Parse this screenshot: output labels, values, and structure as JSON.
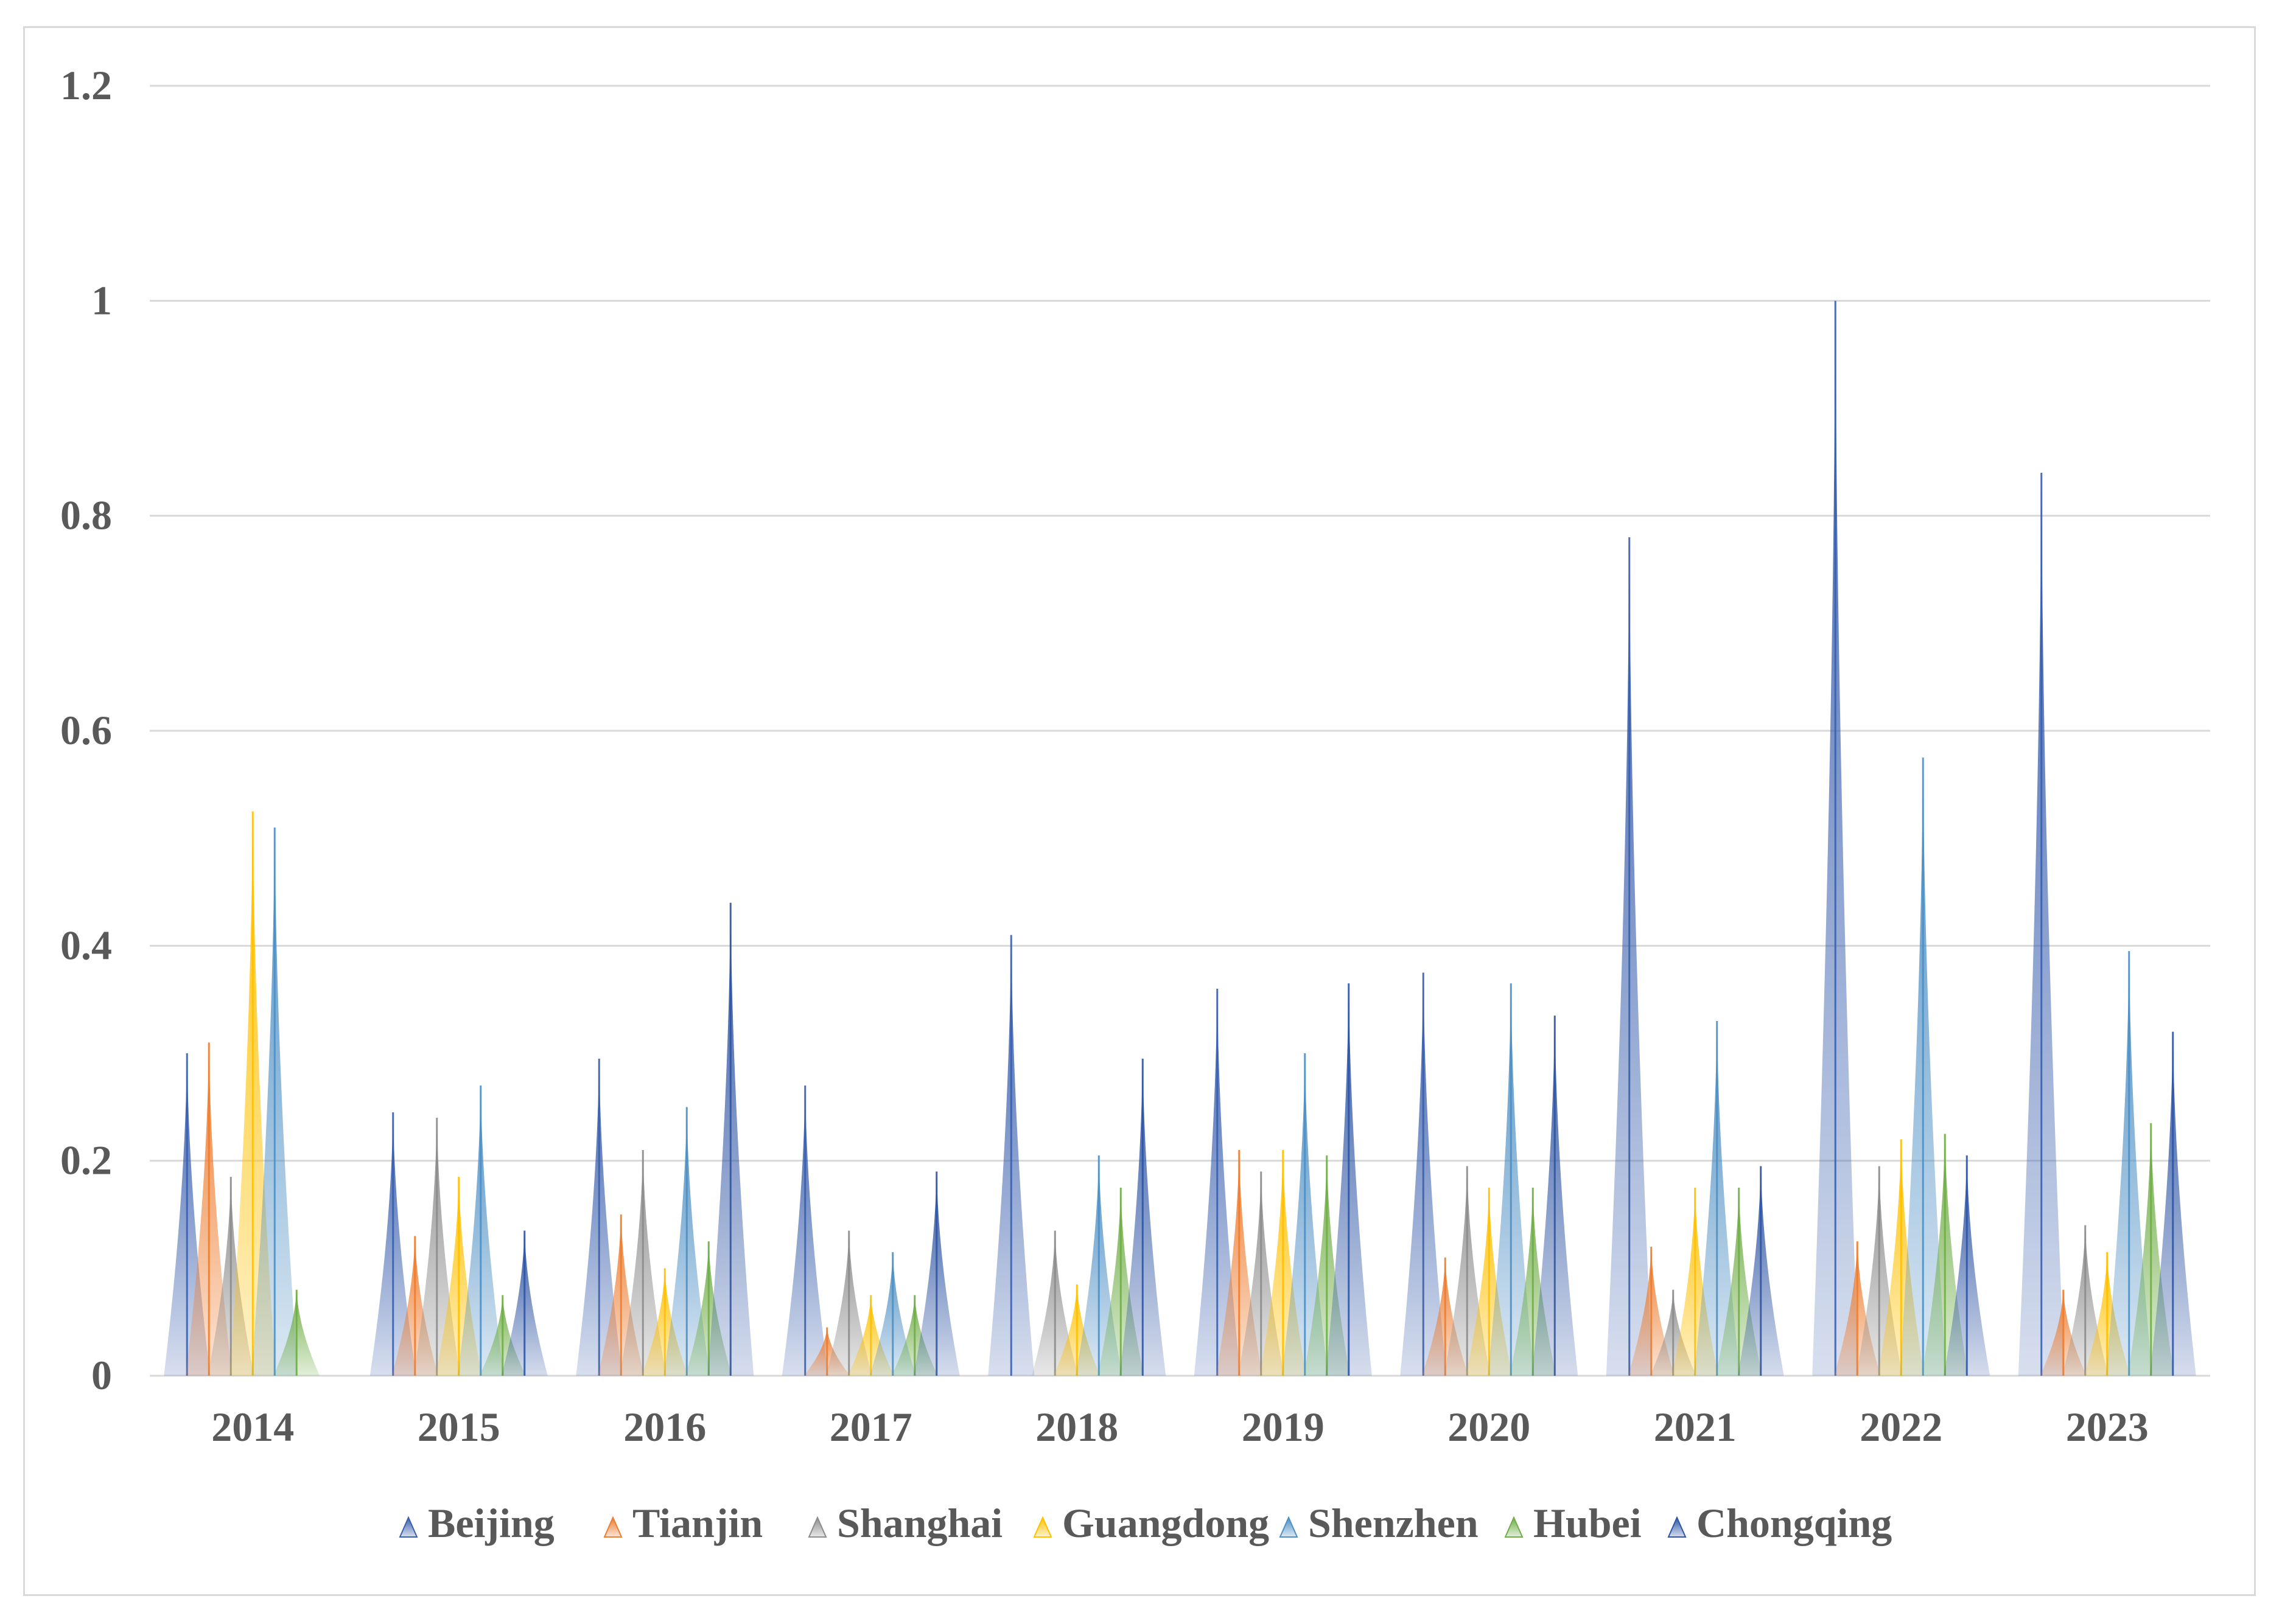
{
  "chart_data": {
    "type": "bar",
    "categories": [
      "2014",
      "2015",
      "2016",
      "2017",
      "2018",
      "2019",
      "2020",
      "2021",
      "2022",
      "2023"
    ],
    "yticks": [
      "0",
      "0.2",
      "0.4",
      "0.6",
      "0.8",
      "1",
      "1.2"
    ],
    "ylim": [
      0,
      1.2
    ],
    "grid": true,
    "legend_position": "bottom",
    "series": [
      {
        "name": "Beijing",
        "color": "#3a5fad",
        "values": [
          0.3,
          0.245,
          0.295,
          0.27,
          0.41,
          0.36,
          0.375,
          0.78,
          1.0,
          0.84
        ]
      },
      {
        "name": "Tianjin",
        "color": "#ed7d31",
        "values": [
          0.31,
          0.13,
          0.15,
          0.045,
          0.0,
          0.21,
          0.11,
          0.12,
          0.125,
          0.08
        ]
      },
      {
        "name": "Shanghai",
        "color": "#8c8c8c",
        "values": [
          0.185,
          0.24,
          0.21,
          0.135,
          0.135,
          0.19,
          0.195,
          0.08,
          0.195,
          0.14
        ]
      },
      {
        "name": "Guangdong",
        "color": "#ffc000",
        "values": [
          0.525,
          0.185,
          0.1,
          0.075,
          0.085,
          0.21,
          0.175,
          0.175,
          0.22,
          0.115
        ]
      },
      {
        "name": "Shenzhen",
        "color": "#4e8fc4",
        "values": [
          0.51,
          0.27,
          0.25,
          0.115,
          0.205,
          0.3,
          0.365,
          0.33,
          0.575,
          0.395
        ]
      },
      {
        "name": "Hubei",
        "color": "#70ad47",
        "values": [
          0.08,
          0.075,
          0.125,
          0.075,
          0.175,
          0.205,
          0.175,
          0.175,
          0.225,
          0.235
        ]
      },
      {
        "name": "Chongqing",
        "color": "#2f55a4",
        "values": [
          0.0,
          0.135,
          0.44,
          0.19,
          0.295,
          0.365,
          0.335,
          0.195,
          0.205,
          0.32
        ]
      }
    ]
  }
}
